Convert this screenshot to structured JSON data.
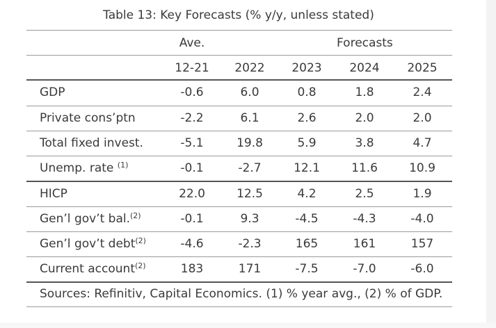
{
  "title": "Table 13: Key Forecasts (% y/y, unless stated)",
  "header_groups": {
    "ave": "Ave.",
    "forecasts": "Forecasts"
  },
  "columns": [
    "12-21",
    "2022",
    "2023",
    "2024",
    "2025"
  ],
  "rows": [
    {
      "label": "GDP",
      "sup": "",
      "values": [
        "-0.6",
        "6.0",
        "0.8",
        "1.8",
        "2.4"
      ]
    },
    {
      "label": "Private cons’ptn",
      "sup": "",
      "values": [
        "-2.2",
        "6.1",
        "2.6",
        "2.0",
        "2.0"
      ]
    },
    {
      "label": "Total fixed invest.",
      "sup": "",
      "values": [
        "-5.1",
        "19.8",
        "5.9",
        "3.8",
        "4.7"
      ]
    },
    {
      "label": "Unemp. rate ",
      "sup": "(1)",
      "values": [
        "-0.1",
        "-2.7",
        "12.1",
        "11.6",
        "10.9"
      ]
    },
    {
      "label": "HICP",
      "sup": "",
      "values": [
        "22.0",
        "12.5",
        "4.2",
        "2.5",
        "1.9"
      ]
    },
    {
      "label": "Gen’l gov’t bal.",
      "sup": "(2)",
      "values": [
        "-0.1",
        "9.3",
        "-4.5",
        "-4.3",
        "-4.0"
      ]
    },
    {
      "label": "Gen’l gov’t debt",
      "sup": "(2)",
      "values": [
        "-4.6",
        "-2.3",
        "165",
        "161",
        "157"
      ]
    },
    {
      "label": "Current account",
      "sup": "(2)",
      "values": [
        "183",
        "171",
        "-7.5",
        "-7.0",
        "-6.0"
      ]
    }
  ],
  "sources": "Sources: Refinitiv, Capital Economics. (1) % year avg., (2) % of GDP."
}
